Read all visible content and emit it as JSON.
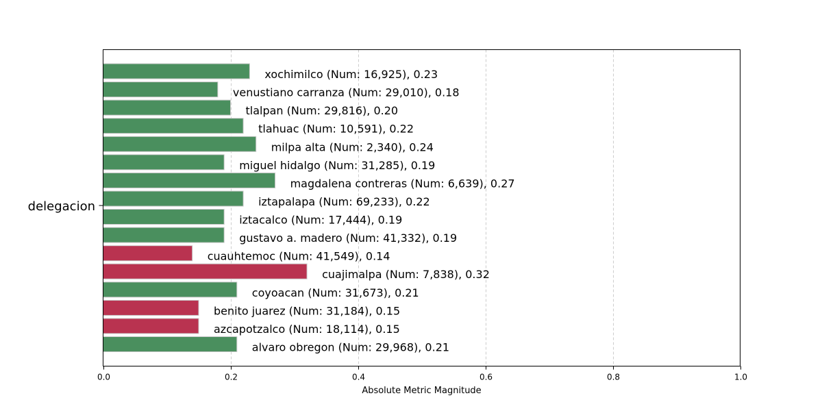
{
  "chart_data": {
    "type": "bar",
    "orientation": "horizontal",
    "ylabel": "delegacion",
    "xlabel": "Absolute Metric Magnitude",
    "xlim": [
      0,
      1.0
    ],
    "xticks": [
      "0.0",
      "0.2",
      "0.4",
      "0.6",
      "0.8",
      "1.0"
    ],
    "grid": "vertical dashed",
    "colors": {
      "positive": "#4a8f5e",
      "negative": "#b93350"
    },
    "bars": [
      {
        "category": "xochimilco",
        "value": 0.23,
        "count": 16925,
        "label": "xochimilco (Num: 16,925), 0.23",
        "sign": "positive"
      },
      {
        "category": "venustiano carranza",
        "value": 0.18,
        "count": 29010,
        "label": "venustiano carranza (Num: 29,010), 0.18",
        "sign": "positive"
      },
      {
        "category": "tlalpan",
        "value": 0.2,
        "count": 29816,
        "label": "tlalpan (Num: 29,816), 0.20",
        "sign": "positive"
      },
      {
        "category": "tlahuac",
        "value": 0.22,
        "count": 10591,
        "label": "tlahuac (Num: 10,591), 0.22",
        "sign": "positive"
      },
      {
        "category": "milpa alta",
        "value": 0.24,
        "count": 2340,
        "label": "milpa alta (Num: 2,340), 0.24",
        "sign": "positive"
      },
      {
        "category": "miguel hidalgo",
        "value": 0.19,
        "count": 31285,
        "label": "miguel hidalgo (Num: 31,285), 0.19",
        "sign": "positive"
      },
      {
        "category": "magdalena contreras",
        "value": 0.27,
        "count": 6639,
        "label": "magdalena contreras (Num: 6,639), 0.27",
        "sign": "positive"
      },
      {
        "category": "iztapalapa",
        "value": 0.22,
        "count": 69233,
        "label": "iztapalapa (Num: 69,233), 0.22",
        "sign": "positive"
      },
      {
        "category": "iztacalco",
        "value": 0.19,
        "count": 17444,
        "label": "iztacalco (Num: 17,444), 0.19",
        "sign": "positive"
      },
      {
        "category": "gustavo a. madero",
        "value": 0.19,
        "count": 41332,
        "label": "gustavo a. madero (Num: 41,332), 0.19",
        "sign": "positive"
      },
      {
        "category": "cuauhtemoc",
        "value": 0.14,
        "count": 41549,
        "label": "cuauhtemoc (Num: 41,549), 0.14",
        "sign": "negative"
      },
      {
        "category": "cuajimalpa",
        "value": 0.32,
        "count": 7838,
        "label": "cuajimalpa (Num: 7,838), 0.32",
        "sign": "negative"
      },
      {
        "category": "coyoacan",
        "value": 0.21,
        "count": 31673,
        "label": "coyoacan (Num: 31,673), 0.21",
        "sign": "positive"
      },
      {
        "category": "benito juarez",
        "value": 0.15,
        "count": 31184,
        "label": "benito juarez (Num: 31,184), 0.15",
        "sign": "negative"
      },
      {
        "category": "azcapotzalco",
        "value": 0.15,
        "count": 18114,
        "label": "azcapotzalco (Num: 18,114), 0.15",
        "sign": "negative"
      },
      {
        "category": "alvaro obregon",
        "value": 0.21,
        "count": 29968,
        "label": "alvaro obregon (Num: 29,968), 0.21",
        "sign": "positive"
      }
    ]
  }
}
